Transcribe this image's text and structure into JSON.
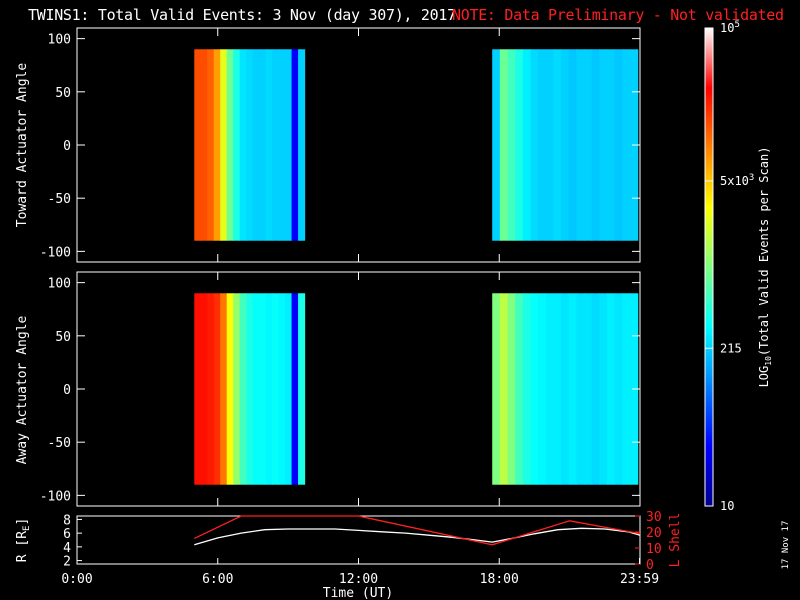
{
  "title": {
    "main": "TWINS1: Total Valid Events:  3 Nov (day 307), 2017",
    "note": "NOTE: Data Preliminary - Not validated"
  },
  "stamp": "17 Nov 17",
  "chart_data": [
    {
      "type": "heatmap",
      "panel": "toward",
      "ylabel": "Toward Actuator Angle",
      "ylim": [
        -110,
        110
      ],
      "yticks": [
        100,
        50,
        0,
        -50,
        -100
      ],
      "xlim": [
        0,
        24
      ],
      "angle_range": [
        -90,
        90
      ],
      "segments": [
        {
          "start_hour": 5.0,
          "end_hour": 9.7,
          "levels": [
            0.8,
            0.8,
            0.78,
            0.72,
            0.6,
            0.48,
            0.4,
            0.35,
            0.34,
            0.33,
            0.33,
            0.34,
            0.33,
            0.33,
            0.33,
            0.12,
            0.33
          ]
        },
        {
          "start_hour": 17.7,
          "end_hour": 23.9,
          "levels": [
            0.33,
            0.48,
            0.44,
            0.4,
            0.36,
            0.34,
            0.33,
            0.33,
            0.34,
            0.33,
            0.32,
            0.33,
            0.33,
            0.32,
            0.33,
            0.33,
            0.32,
            0.33,
            0.33
          ]
        }
      ]
    },
    {
      "type": "heatmap",
      "panel": "away",
      "ylabel": "Away Actuator Angle",
      "ylim": [
        -110,
        110
      ],
      "yticks": [
        100,
        50,
        0,
        -50,
        -100
      ],
      "xlim": [
        0,
        24
      ],
      "angle_range": [
        -90,
        90
      ],
      "segments": [
        {
          "start_hour": 5.0,
          "end_hour": 9.7,
          "levels": [
            0.86,
            0.86,
            0.85,
            0.83,
            0.76,
            0.62,
            0.52,
            0.44,
            0.4,
            0.38,
            0.38,
            0.37,
            0.38,
            0.37,
            0.36,
            0.12,
            0.4
          ]
        },
        {
          "start_hour": 17.7,
          "end_hour": 23.9,
          "levels": [
            0.5,
            0.56,
            0.5,
            0.44,
            0.4,
            0.38,
            0.37,
            0.36,
            0.36,
            0.35,
            0.36,
            0.35,
            0.35,
            0.34,
            0.35,
            0.36,
            0.35,
            0.36,
            0.36
          ]
        }
      ]
    },
    {
      "type": "line",
      "panel": "orbit",
      "ylabel": "R [R",
      "ylabel_sub": "E",
      "ylabel_end": "]",
      "ylim": [
        1.5,
        8.5
      ],
      "yticks": [
        8,
        6,
        4,
        2
      ],
      "y2label": "L Shell",
      "y2lim": [
        0,
        30
      ],
      "y2ticks": [
        30,
        20,
        10,
        0
      ],
      "xlabel": "Time (UT)",
      "xticks": [
        {
          "hour": 0,
          "label": "0:00"
        },
        {
          "hour": 6,
          "label": "6:00"
        },
        {
          "hour": 12,
          "label": "12:00"
        },
        {
          "hour": 18,
          "label": "18:00"
        },
        {
          "hour": 23.98,
          "label": "23:59"
        }
      ],
      "series": [
        {
          "axis": "R",
          "color": "#ffffff",
          "x": [
            5,
            6,
            7,
            8,
            9,
            10,
            11,
            12,
            13,
            14,
            15,
            16,
            17,
            17.7,
            18.5,
            19.5,
            20.5,
            21.5,
            22.5,
            23.5,
            24
          ],
          "y": [
            4.3,
            5.3,
            6.0,
            6.5,
            6.6,
            6.6,
            6.6,
            6.4,
            6.2,
            6.0,
            5.7,
            5.4,
            5.0,
            4.7,
            5.2,
            5.9,
            6.5,
            6.7,
            6.6,
            6.2,
            5.7
          ]
        },
        {
          "axis": "L",
          "color": "#ff2020",
          "x": [
            5,
            7,
            12,
            17.7,
            21,
            24
          ],
          "y": [
            16,
            30,
            30,
            12,
            27,
            19
          ]
        }
      ]
    },
    {
      "type": "colorbar",
      "label_parts": [
        "LOG",
        "10",
        "(Total Valid Events per Scan)"
      ],
      "ticks": [
        {
          "frac": 1.0,
          "base": "10",
          "sup": "5"
        },
        {
          "frac": 0.68,
          "base": "5x10",
          "sup": "3"
        },
        {
          "frac": 0.33,
          "base": "215",
          "sup": ""
        },
        {
          "frac": 0.0,
          "base": "10",
          "sup": ""
        }
      ],
      "colors": [
        "#00008f",
        "#0000ff",
        "#0080ff",
        "#00ffff",
        "#80ff80",
        "#ffff00",
        "#ff8000",
        "#ff0000",
        "#ffffff"
      ]
    }
  ]
}
